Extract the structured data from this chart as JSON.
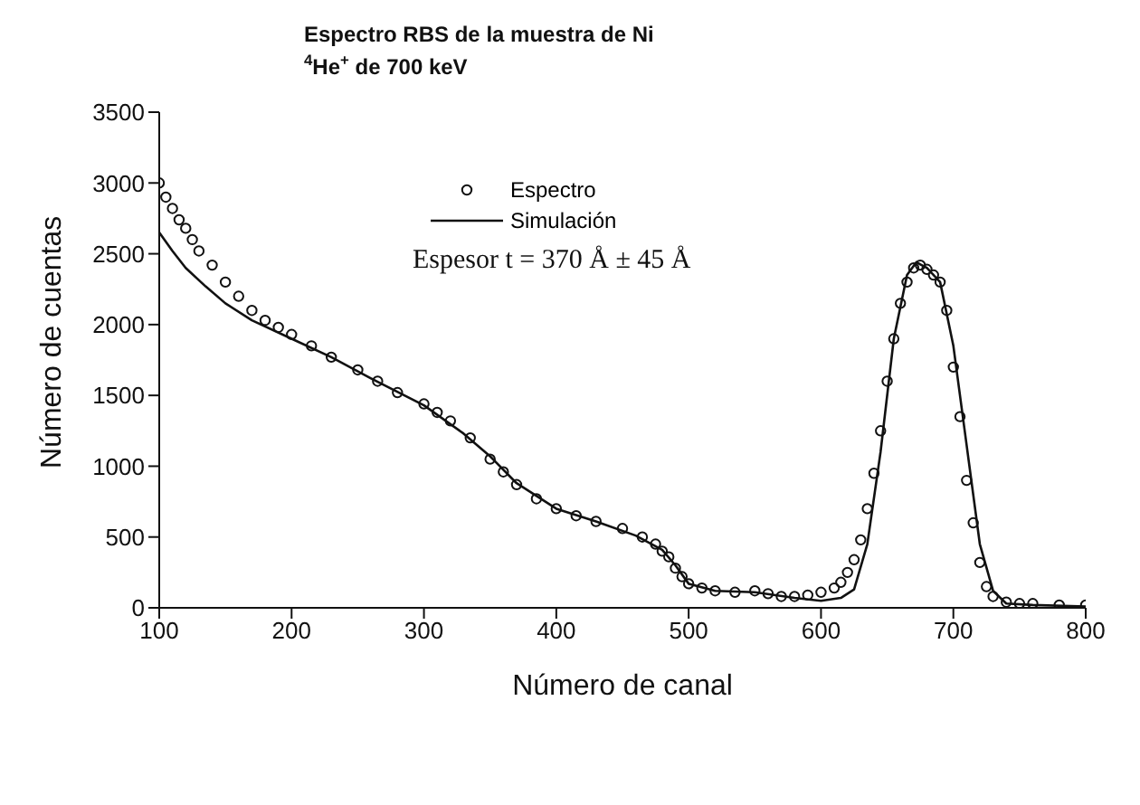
{
  "chart_data": {
    "type": "scatter",
    "title": "Espectro RBS de la muestra de Ni",
    "subtitle": "$^{4}$He$^{+}$ de 700 keV",
    "xlabel": "Número de canal",
    "ylabel": "Número de cuentas",
    "annotations": [
      "Espesor t = 370 Å ± 45 Å"
    ],
    "xlim": [
      100,
      800
    ],
    "ylim": [
      0,
      3500
    ],
    "xticks": [
      100,
      200,
      300,
      400,
      500,
      600,
      700,
      800
    ],
    "yticks": [
      0,
      500,
      1000,
      1500,
      2000,
      2500,
      3000,
      3500
    ],
    "legend": "top",
    "series": [
      {
        "name": "Espectro",
        "marker": "circle",
        "color": "#111111",
        "x": [
          100,
          105,
          110,
          115,
          120,
          125,
          130,
          140,
          150,
          160,
          170,
          180,
          190,
          200,
          215,
          230,
          250,
          265,
          280,
          300,
          310,
          320,
          335,
          350,
          360,
          370,
          385,
          400,
          415,
          430,
          450,
          465,
          475,
          480,
          485,
          490,
          495,
          500,
          510,
          520,
          535,
          550,
          560,
          570,
          580,
          590,
          600,
          610,
          615,
          620,
          625,
          630,
          635,
          640,
          645,
          650,
          655,
          660,
          665,
          670,
          675,
          680,
          685,
          690,
          695,
          700,
          705,
          710,
          715,
          720,
          725,
          730,
          740,
          750,
          760,
          780,
          800
        ],
        "values": [
          3000,
          2900,
          2820,
          2740,
          2680,
          2600,
          2520,
          2420,
          2300,
          2200,
          2100,
          2030,
          1980,
          1930,
          1850,
          1770,
          1680,
          1600,
          1520,
          1440,
          1380,
          1320,
          1200,
          1050,
          960,
          870,
          770,
          700,
          650,
          610,
          560,
          500,
          450,
          400,
          360,
          280,
          220,
          170,
          140,
          120,
          110,
          120,
          100,
          80,
          80,
          90,
          110,
          140,
          180,
          250,
          340,
          480,
          700,
          950,
          1250,
          1600,
          1900,
          2150,
          2300,
          2400,
          2420,
          2390,
          2350,
          2300,
          2100,
          1700,
          1350,
          900,
          600,
          320,
          150,
          80,
          40,
          30,
          30,
          20,
          20
        ]
      },
      {
        "name": "Simulación",
        "type": "line",
        "marker": "none",
        "line_style": "solid",
        "color": "#111111",
        "x": [
          100,
          110,
          120,
          135,
          150,
          170,
          200,
          230,
          260,
          300,
          330,
          350,
          370,
          400,
          430,
          460,
          480,
          490,
          500,
          520,
          550,
          580,
          600,
          615,
          625,
          635,
          645,
          655,
          665,
          672,
          680,
          690,
          700,
          710,
          720,
          730,
          740,
          760,
          800
        ],
        "values": [
          2650,
          2520,
          2400,
          2270,
          2150,
          2030,
          1900,
          1770,
          1620,
          1430,
          1230,
          1070,
          880,
          700,
          610,
          510,
          410,
          300,
          170,
          120,
          110,
          70,
          50,
          70,
          130,
          450,
          1100,
          1900,
          2350,
          2440,
          2400,
          2300,
          1850,
          1150,
          450,
          120,
          30,
          20,
          10
        ]
      }
    ]
  }
}
